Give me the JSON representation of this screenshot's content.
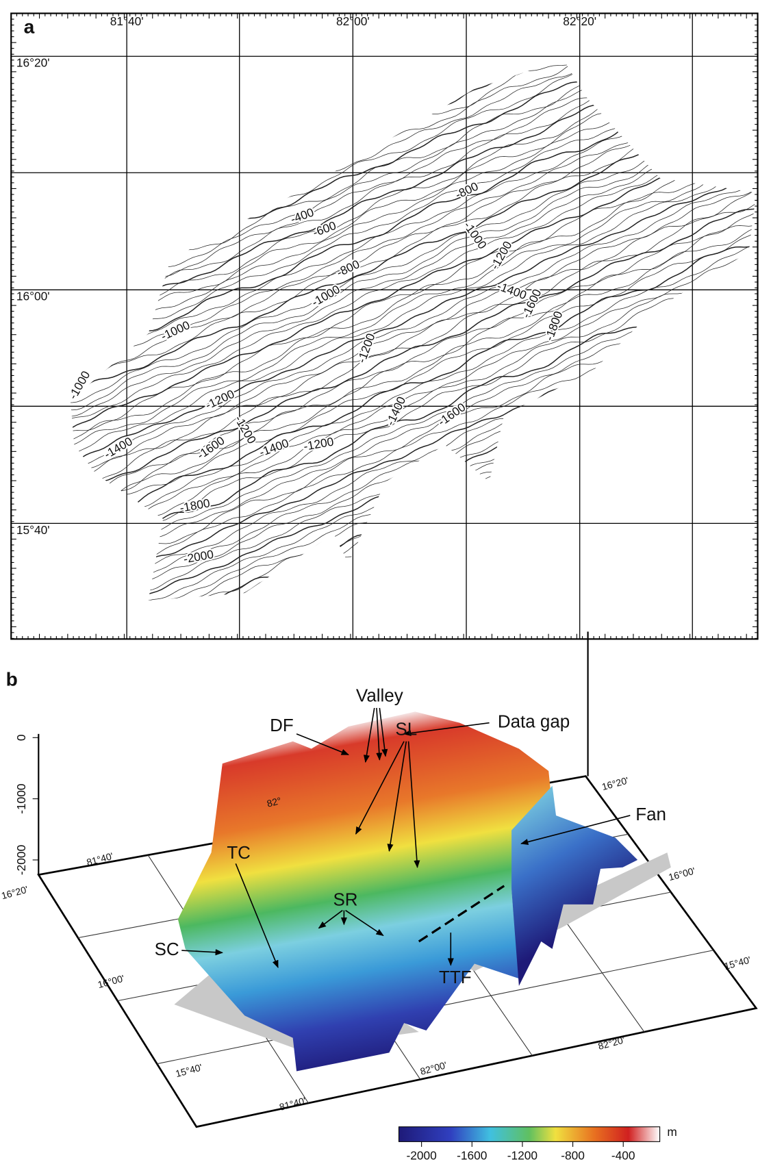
{
  "panel_a": {
    "label": "a",
    "lon_labels": [
      "81°40'",
      "82°00'",
      "82°20'"
    ],
    "lat_labels": [
      "16°20'",
      "16°00'",
      "15°40'"
    ],
    "contour_labels": [
      -400,
      -600,
      -800,
      -800,
      -1000,
      -1200,
      -1000,
      -1400,
      -1600,
      -1800,
      -1000,
      -1200,
      -1000,
      -1200,
      -1200,
      -1400,
      -1600,
      -1400,
      -1600,
      -1400,
      -1200,
      -1800,
      -2000
    ]
  },
  "panel_b": {
    "label": "b",
    "annotations": [
      "Valley",
      "Data gap",
      "DF",
      "SL",
      "Fan",
      "TC",
      "SR",
      "SC",
      "TTF"
    ],
    "z_ticks": [
      0,
      -1000,
      -2000
    ],
    "axis_labels": [
      "81°40'",
      "82°",
      "16°20'",
      "16°00'",
      "15°40'",
      "81°40'",
      "82°00'",
      "82°20'",
      "16°20'",
      "16°00'",
      "15°40'"
    ],
    "colorbar": {
      "ticks": [
        -2000,
        -1600,
        -1200,
        -800,
        -400
      ],
      "unit": "m",
      "range": [
        -2180,
        -110
      ]
    }
  }
}
